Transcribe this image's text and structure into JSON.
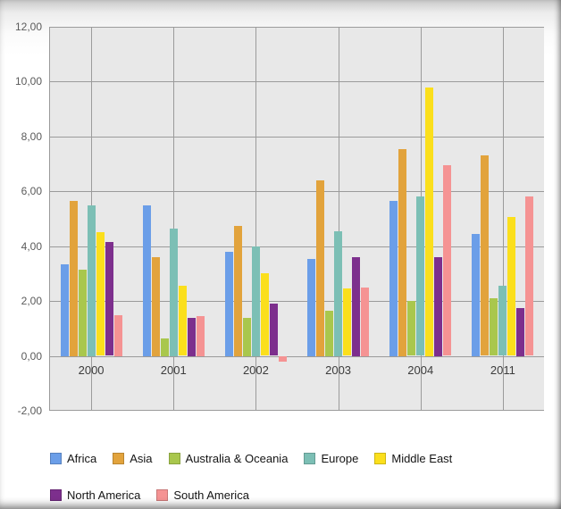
{
  "chart_data": {
    "type": "bar",
    "categories": [
      "2000",
      "2001",
      "2002",
      "2003",
      "2004",
      "2011"
    ],
    "series": [
      {
        "name": "Africa",
        "color": "#6b9ee8",
        "values": [
          3.35,
          5.5,
          3.8,
          3.55,
          5.65,
          4.45
        ]
      },
      {
        "name": "Asia",
        "color": "#e2a33c",
        "values": [
          5.65,
          3.6,
          4.75,
          6.4,
          7.55,
          7.3
        ]
      },
      {
        "name": "Australia & Oceania",
        "color": "#a9c74d",
        "values": [
          3.15,
          0.65,
          1.4,
          1.65,
          2.0,
          2.1
        ]
      },
      {
        "name": "Europe",
        "color": "#7cbfb5",
        "values": [
          5.5,
          4.65,
          4.0,
          4.55,
          5.8,
          2.55
        ]
      },
      {
        "name": "Middle East",
        "color": "#fbdf1c",
        "values": [
          4.5,
          2.55,
          3.0,
          2.45,
          9.8,
          5.05
        ]
      },
      {
        "name": "North America",
        "color": "#7d2f8d",
        "values": [
          4.15,
          1.4,
          1.9,
          3.6,
          3.6,
          1.75
        ]
      },
      {
        "name": "South America",
        "color": "#f59393",
        "values": [
          1.5,
          1.45,
          -0.2,
          2.5,
          6.95,
          5.8
        ]
      }
    ],
    "ylim": [
      -2,
      12
    ],
    "ytick_step": 2,
    "yticks": [
      {
        "label": "12,00",
        "value": 12
      },
      {
        "label": "10,00",
        "value": 10
      },
      {
        "label": "8,00",
        "value": 8
      },
      {
        "label": "6,00",
        "value": 6
      },
      {
        "label": "4,00",
        "value": 4
      },
      {
        "label": "2,00",
        "value": 2
      },
      {
        "label": "0,00",
        "value": 0
      },
      {
        "label": "-2,00",
        "value": -2
      }
    ],
    "grid": true,
    "legend_position": "bottom",
    "number_format": "comma-decimal"
  }
}
